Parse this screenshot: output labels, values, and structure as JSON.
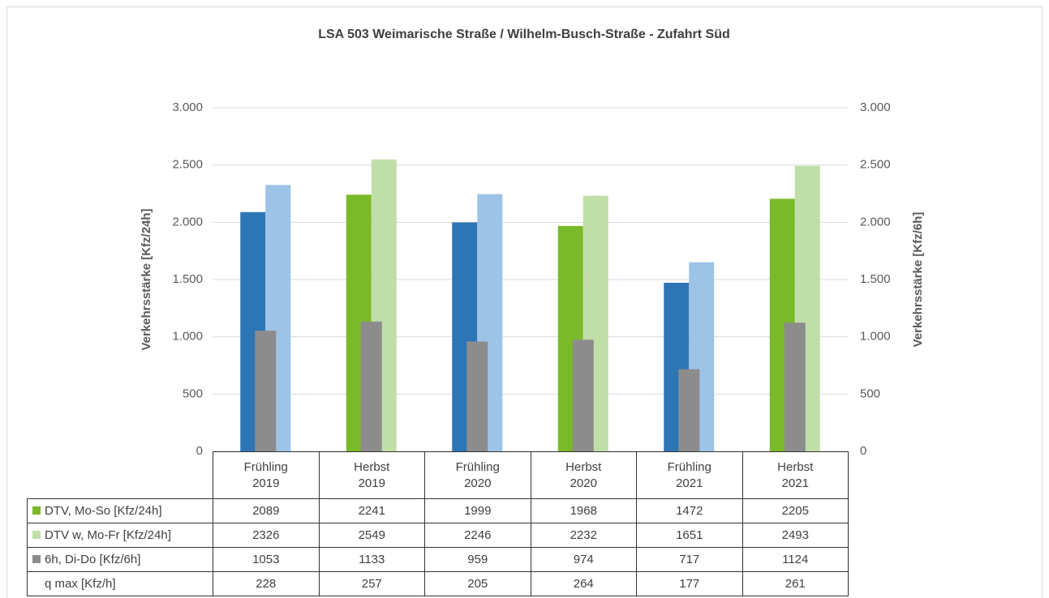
{
  "chart_data": {
    "type": "bar",
    "title": "LSA 503 Weimarische Straße / Wilhelm-Busch-Straße - Zufahrt Süd",
    "ylabel": "Verkehrsstärke [Kfz/24h]",
    "y2label": "Verkehrsstärke [Kfz/6h]",
    "categories": [
      "Frühling\n2019",
      "Herbst\n2019",
      "Frühling\n2020",
      "Herbst\n2020",
      "Frühling\n2021",
      "Herbst\n2021"
    ],
    "series": [
      {
        "name": "DTV, Mo-So [Kfz/24h]",
        "color": "#7ab929",
        "point_colors": [
          "#2e75b6",
          "#7ab929",
          "#2e75b6",
          "#7ab929",
          "#2e75b6",
          "#7ab929"
        ],
        "values": [
          2089,
          2241,
          1999,
          1968,
          1472,
          2205
        ]
      },
      {
        "name": "DTV w, Mo-Fr [Kfz/24h]",
        "color": "#c0dea8",
        "point_colors": [
          "#9dc3e6",
          "#c0dea8",
          "#9dc3e6",
          "#c0dea8",
          "#9dc3e6",
          "#c0dea8"
        ],
        "values": [
          2326,
          2549,
          2246,
          2232,
          1651,
          2493
        ]
      },
      {
        "name": "6h, Di-Do [Kfz/6h]",
        "color": "#8c8c8c",
        "axis": "y2",
        "values": [
          1053,
          1133,
          959,
          974,
          717,
          1124
        ]
      },
      {
        "name": "q max [Kfz/h]",
        "values": [
          228,
          257,
          205,
          264,
          177,
          261
        ]
      }
    ],
    "ylim": [
      0,
      3000
    ],
    "yticks": [
      0,
      500,
      {
        "value": 1000,
        "label": "1.000"
      },
      {
        "value": 1500,
        "label": "1.500"
      },
      {
        "value": 2000,
        "label": "2.000"
      },
      {
        "value": 2500,
        "label": "2.500"
      },
      {
        "value": 3000,
        "label": "3.000"
      }
    ],
    "y2lim": [
      0,
      3000
    ],
    "y2ticks": [
      0,
      500,
      {
        "value": 1000,
        "label": "1.000"
      },
      {
        "value": 1500,
        "label": "1.500"
      },
      {
        "value": 2000,
        "label": "2.000"
      },
      {
        "value": 2500,
        "label": "2.500"
      },
      {
        "value": 3000,
        "label": "3.000"
      }
    ],
    "grid": true
  }
}
